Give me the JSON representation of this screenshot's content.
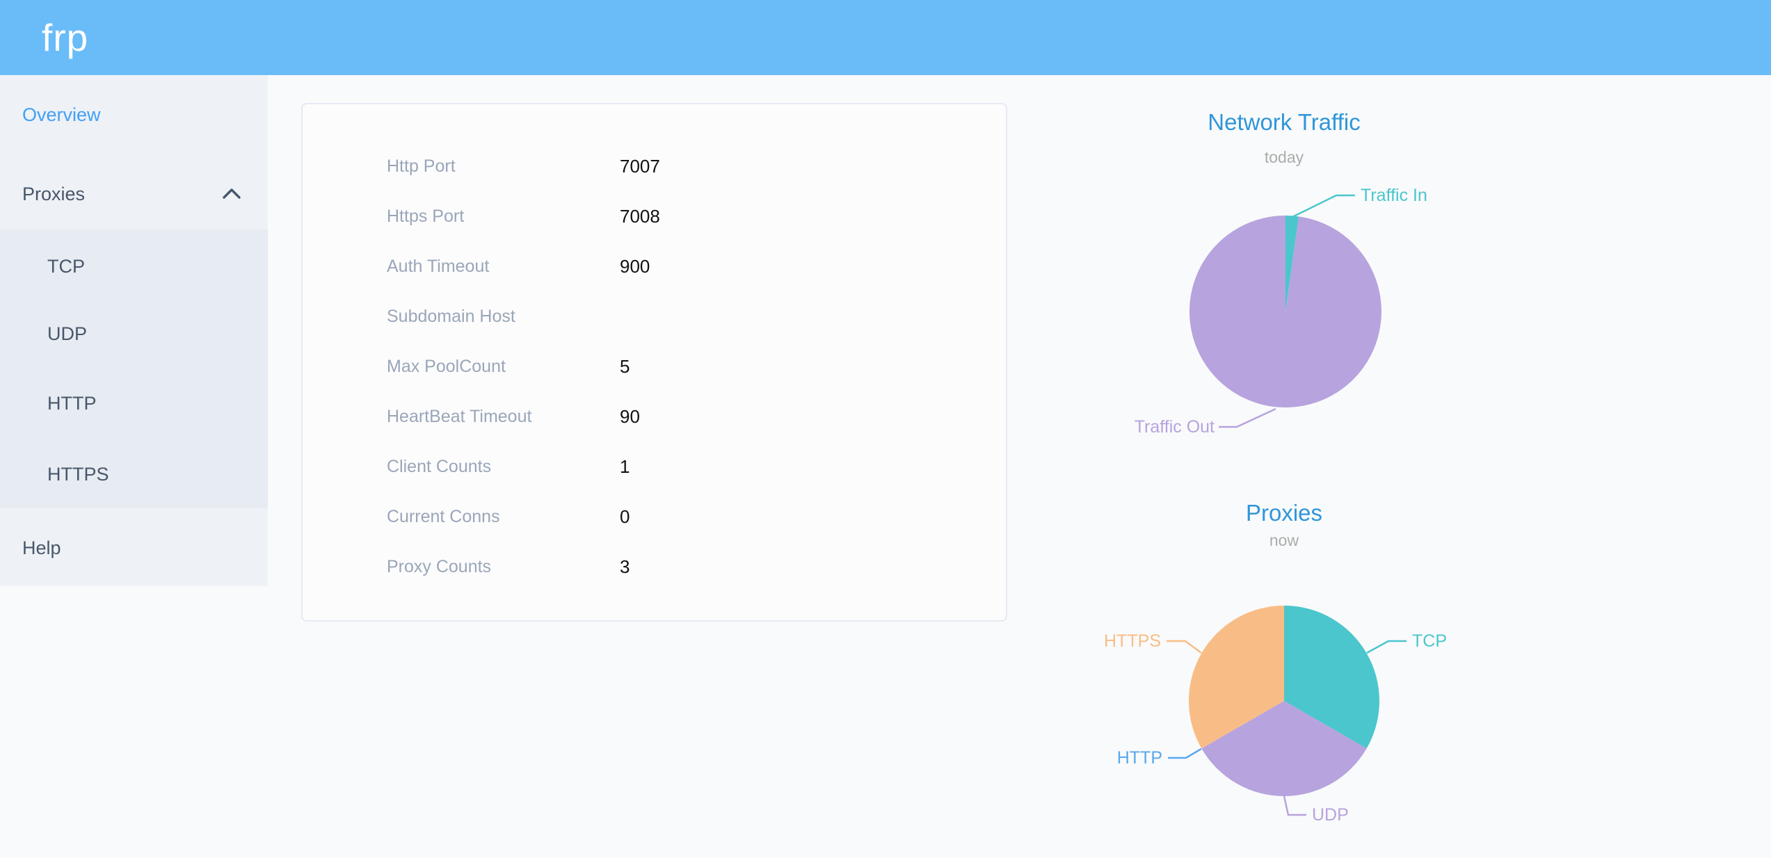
{
  "app": {
    "logo_text": "frp"
  },
  "sidebar": {
    "items": [
      {
        "label": "Overview",
        "active": true
      },
      {
        "label": "Proxies",
        "expanded": true
      },
      {
        "label": "Help",
        "active": false
      }
    ],
    "submenu": [
      "TCP",
      "UDP",
      "HTTP",
      "HTTPS"
    ]
  },
  "server_info": {
    "rows": [
      {
        "label": "Http Port",
        "value": "7007"
      },
      {
        "label": "Https Port",
        "value": "7008"
      },
      {
        "label": "Auth Timeout",
        "value": "900"
      },
      {
        "label": "Subdomain Host",
        "value": ""
      },
      {
        "label": "Max PoolCount",
        "value": "5"
      },
      {
        "label": "HeartBeat Timeout",
        "value": "90"
      },
      {
        "label": "Client Counts",
        "value": "1"
      },
      {
        "label": "Current Conns",
        "value": "0"
      },
      {
        "label": "Proxy Counts",
        "value": "3"
      }
    ]
  },
  "chart_data": [
    {
      "type": "pie",
      "title": "Network Traffic",
      "subtitle": "today",
      "value_format": "percent_estimated",
      "legend_position": "callout-labels",
      "slices": [
        {
          "label": "Traffic In",
          "value": 2.2,
          "color": "#4bc6cc"
        },
        {
          "label": "Traffic Out",
          "value": 97.8,
          "color": "#b7a3de"
        }
      ]
    },
    {
      "type": "pie",
      "title": "Proxies",
      "subtitle": "now",
      "value_format": "count",
      "legend_position": "callout-labels",
      "slices": [
        {
          "label": "TCP",
          "value": 1,
          "color": "#4bc6cc"
        },
        {
          "label": "UDP",
          "value": 1,
          "color": "#b7a3de"
        },
        {
          "label": "HTTP",
          "value": 0,
          "color": "#58a8ee"
        },
        {
          "label": "HTTPS",
          "value": 1,
          "color": "#f8bd86"
        }
      ]
    }
  ],
  "colors": {
    "header_bg": "#69bcf8",
    "page_bg": "#f9fafb",
    "sidebar_bg": "#eef1f6",
    "submenu_bg": "#e7ebf2",
    "sidebar_text": "#48576a",
    "sidebar_active": "#42a0f5",
    "chart_title": "#2f96d9",
    "subtitle": "#ababab",
    "label_grey": "#9aa6b8",
    "value_dark": "#111111",
    "card_bg": "#fcfcfd",
    "card_border": "#e7eaf3"
  }
}
